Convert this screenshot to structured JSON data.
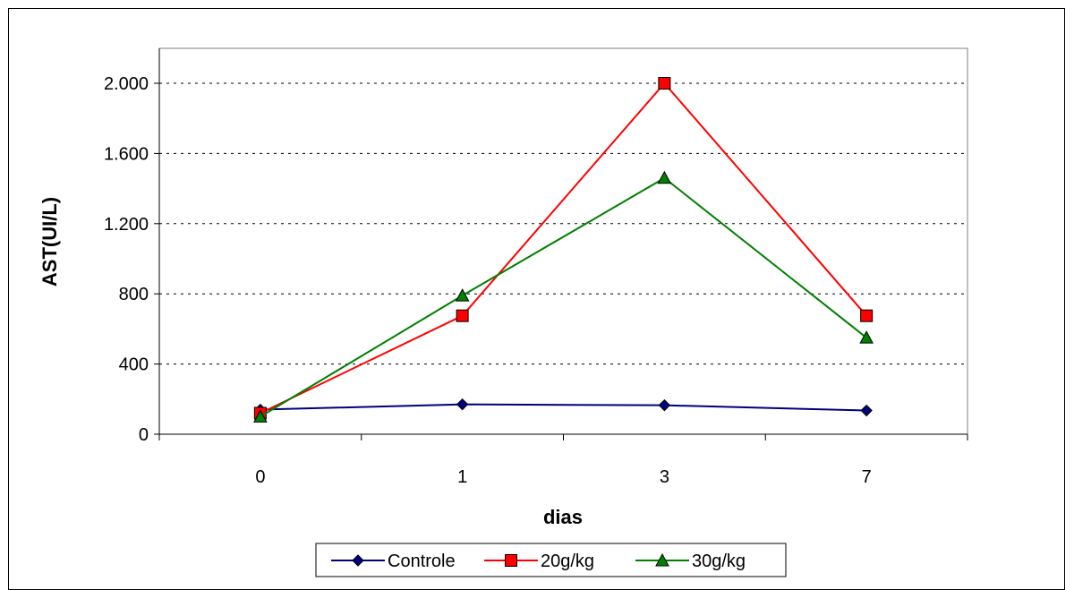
{
  "chart_data": {
    "type": "line",
    "categories": [
      "0",
      "1",
      "3",
      "7"
    ],
    "xlabel": "dias",
    "ylabel": "AST(UI/L)",
    "ylim": [
      0,
      2000
    ],
    "yticks": [
      0,
      400,
      800,
      1200,
      1600,
      2000
    ],
    "ytick_labels": [
      "0",
      "400",
      "800",
      "1.200",
      "1.600",
      "2.000"
    ],
    "grid": "horizontal-dotted",
    "legend_position": "bottom",
    "series": [
      {
        "name": "Controle",
        "values": [
          140,
          170,
          165,
          135
        ],
        "color": "#000080",
        "marker": "diamond"
      },
      {
        "name": "20g/kg",
        "values": [
          120,
          675,
          2000,
          675
        ],
        "color": "#ff0000",
        "marker": "square"
      },
      {
        "name": "30g/kg",
        "values": [
          100,
          790,
          1460,
          550
        ],
        "color": "#008000",
        "marker": "triangle"
      }
    ]
  }
}
